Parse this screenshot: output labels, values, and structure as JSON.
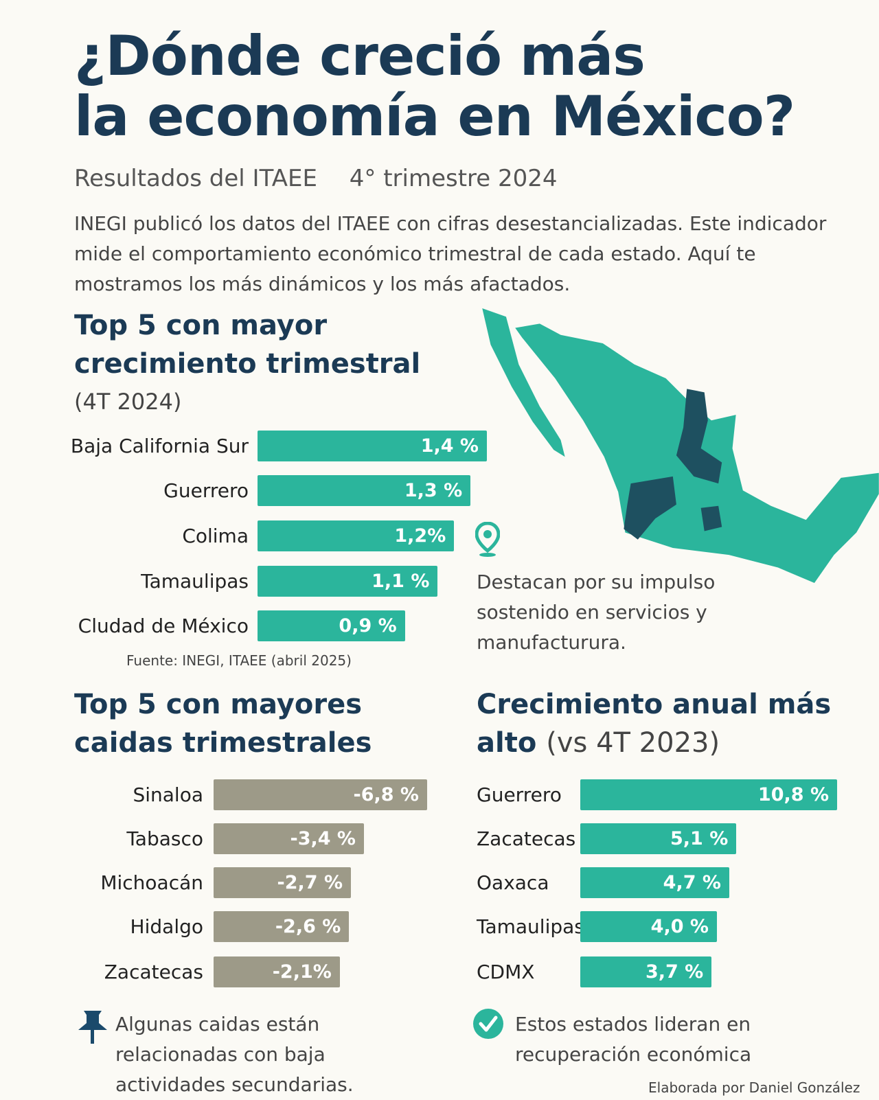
{
  "header": {
    "title_line1": "¿Dónde creció más",
    "title_line2": "la economía en México?",
    "subtitle_a": "Resultados del ITAEE",
    "subtitle_b": "4° trimestre 2024",
    "intro": "INEGI publicó los datos  del ITAEE con cifras desestancializadas. Este indicador mide el comportamiento económico trimestral de cada estado. Aquí te mostramos los más dinámicos y los más afactados."
  },
  "colors": {
    "title": "#1b3a55",
    "teal": "#2bb59c",
    "gray": "#9d9a88",
    "background": "#fbfaf5"
  },
  "map_note": {
    "icon": "map-pin-icon",
    "text_lines": [
      "Destacan por su impulso",
      "sostenido en servicios y",
      "manufacturura."
    ]
  },
  "source": "Fuente: INEGI, ITAEE (abril 2025)",
  "chart_data": [
    {
      "type": "bar",
      "orientation": "horizontal",
      "title": "Top 5 con mayor crecimiento trimestral",
      "subtitle": "(4T 2024)",
      "categories": [
        "Baja California Sur",
        "Guerrero",
        "Colima",
        "Tamaulipas",
        "Cludad de México"
      ],
      "values": [
        1.4,
        1.3,
        1.2,
        1.1,
        0.9
      ],
      "labels": [
        "1,4 %",
        "1,3 %",
        "1,2%",
        "1,1 %",
        "0,9 %"
      ],
      "unit": "%",
      "color": "#2bb59c"
    },
    {
      "type": "bar",
      "orientation": "horizontal",
      "title": "Top 5 con mayores caidas trimestrales",
      "categories": [
        "Sinaloa",
        "Tabasco",
        "Michoacán",
        "Hidalgo",
        "Zacatecas"
      ],
      "values": [
        -6.8,
        -3.4,
        -2.7,
        -2.6,
        -2.1
      ],
      "labels": [
        "-6,8 %",
        "-3,4 %",
        "-2,7 %",
        "-2,6 %",
        "-2,1%"
      ],
      "unit": "%",
      "color": "#9d9a88"
    },
    {
      "type": "bar",
      "orientation": "horizontal",
      "title": "Crecimiento anual más alto",
      "title_suffix": "(vs 4T 2023)",
      "categories": [
        "Guerrero",
        "Zacatecas",
        "Oaxaca",
        "Tamaulipas",
        "CDMX"
      ],
      "values": [
        10.8,
        5.1,
        4.7,
        4.0,
        3.7
      ],
      "labels": [
        "10,8 %",
        "5,1 %",
        "4,7 %",
        "4,0 %",
        "3,7 %"
      ],
      "unit": "%",
      "color": "#2bb59c"
    }
  ],
  "footer": {
    "left_icon": "pushpin-icon",
    "left_lines": [
      "Algunas  caidas están",
      "relacionadas con baja",
      "actividades secundarias."
    ],
    "right_icon": "check-circle-icon",
    "right_lines": [
      "Estos estados lideran en",
      "recuperación económica"
    ],
    "credit": "Elaborada por Daniel González"
  }
}
